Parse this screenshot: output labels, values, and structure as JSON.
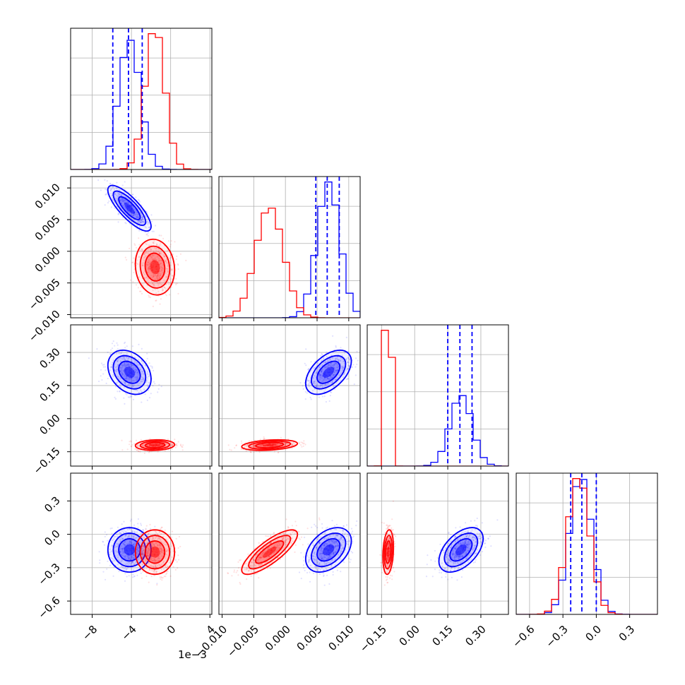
{
  "figure_type": "corner plot",
  "colors": {
    "blue": "#0000ff",
    "red": "#ff0000",
    "grid": "#b0b0b0",
    "frame": "#000000"
  },
  "offset_text": "1e−3",
  "dims": [
    {
      "ticks": [
        -8,
        -4,
        0,
        4
      ],
      "tick_labels": [
        "−8",
        "−4",
        "0",
        "4"
      ],
      "range": [
        -10.2,
        4.2
      ]
    },
    {
      "ticks": [
        -0.01,
        -0.005,
        0,
        0.005,
        0.01
      ],
      "tick_labels": [
        "−0.010",
        "−0.005",
        "0.000",
        "0.005",
        "0.010"
      ],
      "range": [
        -0.0105,
        0.0118
      ]
    },
    {
      "ticks": [
        -0.15,
        0,
        0.15,
        0.3
      ],
      "tick_labels": [
        "−0.15",
        "0.00",
        "0.15",
        "0.30"
      ],
      "range": [
        -0.215,
        0.425
      ]
    },
    {
      "ticks": [
        -0.6,
        -0.3,
        0,
        0.3
      ],
      "tick_labels": [
        "−0.6",
        "−0.3",
        "0.0",
        "0.3"
      ],
      "range": [
        -0.72,
        0.55
      ]
    }
  ],
  "chart_data": {
    "type": "scatter",
    "subtype": "corner",
    "grid": true,
    "series": [
      {
        "name": "",
        "color": "#0000ff",
        "mean": [
          -4.2,
          0.0068,
          0.21,
          -0.14
        ],
        "std": [
          1.1,
          0.0018,
          0.05,
          0.1
        ],
        "corr": [
          [
            1,
            -0.8,
            -0.3,
            0
          ],
          [
            -0.8,
            1,
            0.5,
            0.4
          ],
          [
            -0.3,
            0.5,
            1,
            0.5
          ],
          [
            0,
            0.4,
            0.5,
            1
          ]
        ],
        "quantiles": [
          [
            -5.9,
            -4.3,
            -2.9
          ],
          [
            0.0048,
            0.0066,
            0.0085
          ],
          [
            0.15,
            0.205,
            0.26
          ],
          [
            -0.23,
            -0.13,
            0.0
          ]
        ]
      },
      {
        "name": "",
        "color": "#ff0000",
        "mean": [
          -1.6,
          -0.0025,
          -0.12,
          -0.16
        ],
        "std": [
          1.0,
          0.0022,
          0.012,
          0.1
        ],
        "corr": [
          [
            1,
            -0.1,
            0.1,
            0
          ],
          [
            -0.1,
            1,
            0.3,
            0.8
          ],
          [
            0.1,
            0.3,
            1,
            0.2
          ],
          [
            0,
            0.8,
            0.2,
            1
          ]
        ]
      }
    ]
  }
}
